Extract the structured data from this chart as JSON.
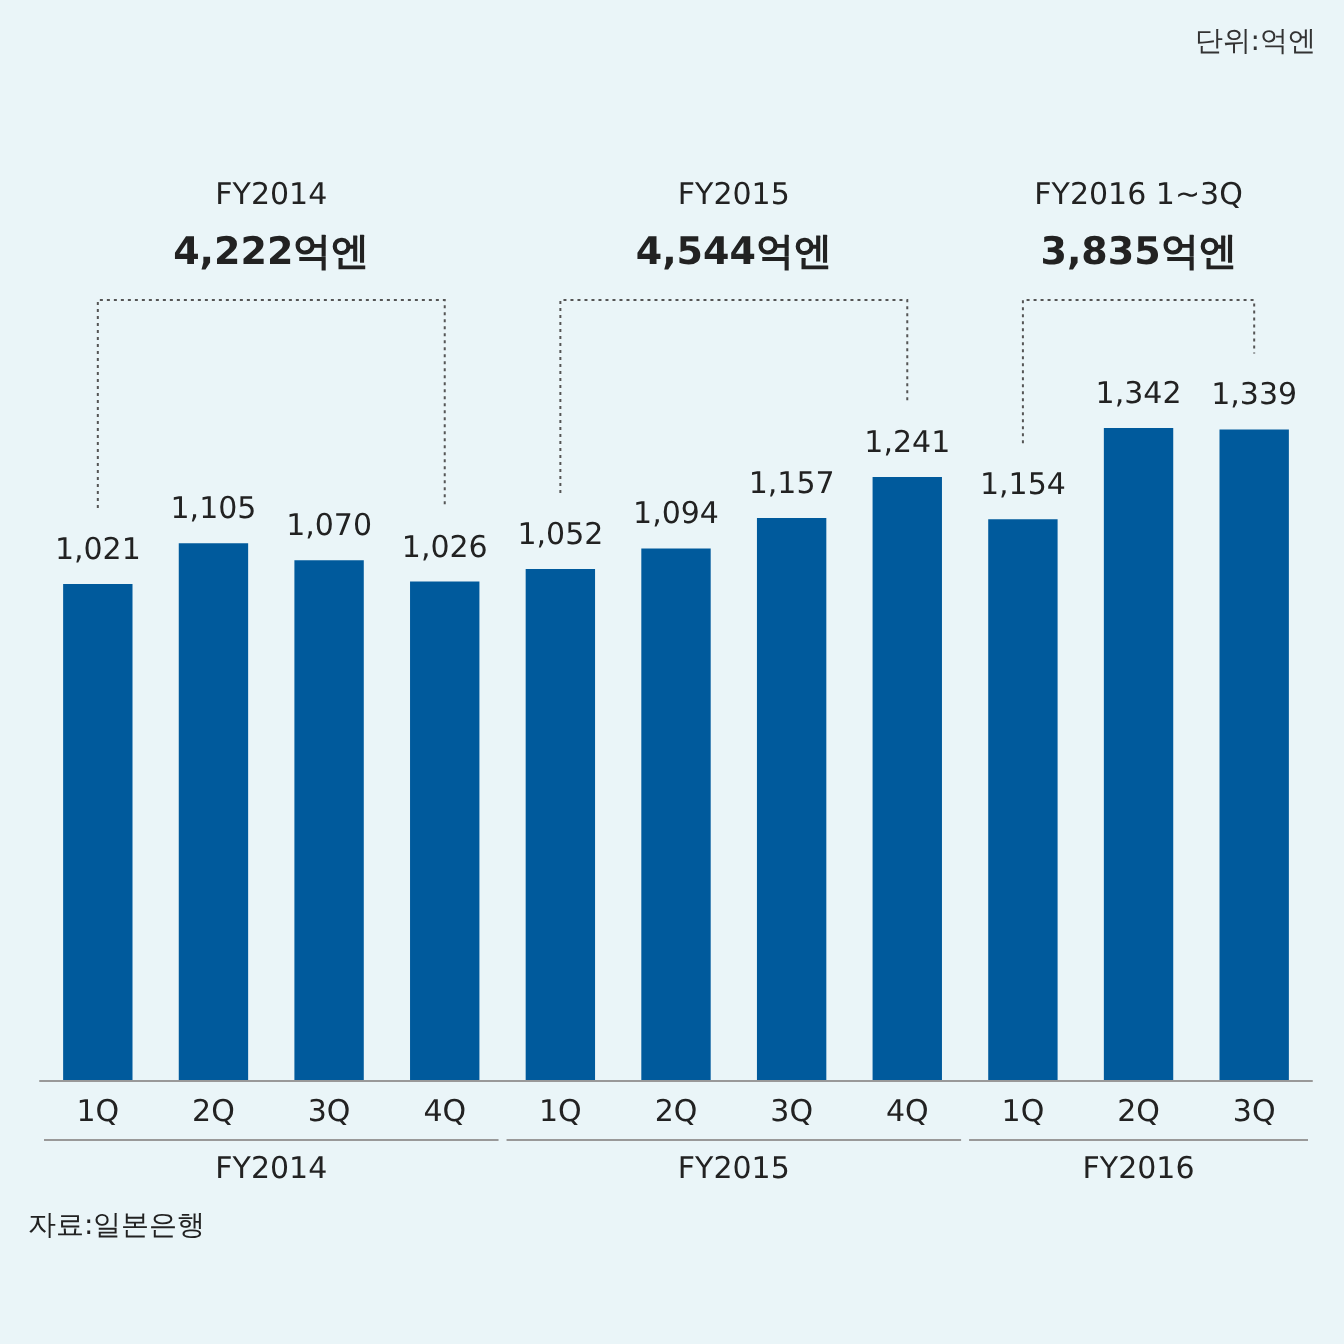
{
  "chart_data": {
    "type": "bar",
    "categories": [
      "1Q",
      "2Q",
      "3Q",
      "4Q",
      "1Q",
      "2Q",
      "3Q",
      "4Q",
      "1Q",
      "2Q",
      "3Q"
    ],
    "values": [
      1021,
      1105,
      1070,
      1026,
      1052,
      1094,
      1157,
      1241,
      1154,
      1342,
      1339
    ],
    "value_labels": [
      "1,021",
      "1,105",
      "1,070",
      "1,026",
      "1,052",
      "1,094",
      "1,157",
      "1,241",
      "1,154",
      "1,342",
      "1,339"
    ],
    "color": "#005a9c",
    "annotations": [
      "단위:억엔",
      "FY2014",
      "4,222억엔",
      "FY2015",
      "4,544억엔",
      "FY2016 1~3Q",
      "3,835억엔",
      "FY2014",
      "FY2015",
      "FY2016",
      "자료:일본은행"
    ]
  }
}
